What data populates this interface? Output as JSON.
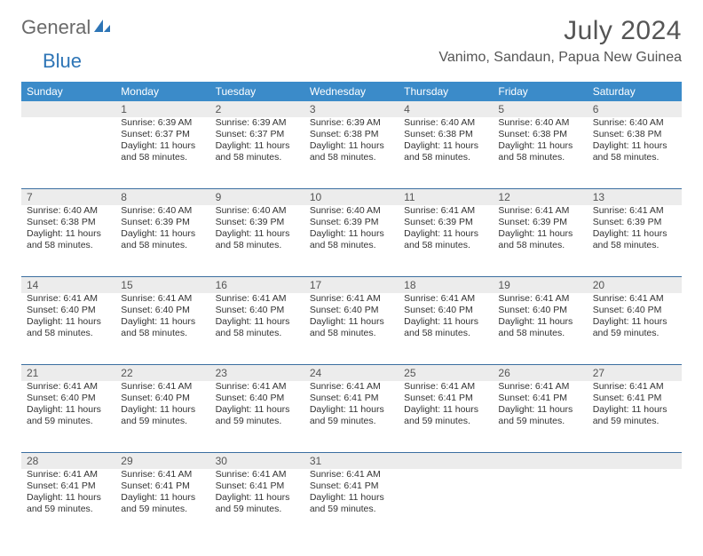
{
  "brand": {
    "part1": "General",
    "part2": "Blue"
  },
  "title": "July 2024",
  "location": "Vanimo, Sandaun, Papua New Guinea",
  "colors": {
    "header_bg": "#3b8bc9",
    "week_divider": "#3b6ea0",
    "daynum_bg": "#ececec",
    "text": "#333333",
    "muted": "#555555",
    "brand_gray": "#6a6a6a",
    "brand_blue": "#2e75b6",
    "page_bg": "#ffffff"
  },
  "typography": {
    "title_fontsize": 30,
    "location_fontsize": 16,
    "dow_fontsize": 12,
    "daynum_fontsize": 12,
    "cell_fontsize": 10.5
  },
  "dow": [
    "Sunday",
    "Monday",
    "Tuesday",
    "Wednesday",
    "Thursday",
    "Friday",
    "Saturday"
  ],
  "weeks": [
    [
      null,
      {
        "n": "1",
        "sr": "Sunrise: 6:39 AM",
        "ss": "Sunset: 6:37 PM",
        "d1": "Daylight: 11 hours",
        "d2": "and 58 minutes."
      },
      {
        "n": "2",
        "sr": "Sunrise: 6:39 AM",
        "ss": "Sunset: 6:37 PM",
        "d1": "Daylight: 11 hours",
        "d2": "and 58 minutes."
      },
      {
        "n": "3",
        "sr": "Sunrise: 6:39 AM",
        "ss": "Sunset: 6:38 PM",
        "d1": "Daylight: 11 hours",
        "d2": "and 58 minutes."
      },
      {
        "n": "4",
        "sr": "Sunrise: 6:40 AM",
        "ss": "Sunset: 6:38 PM",
        "d1": "Daylight: 11 hours",
        "d2": "and 58 minutes."
      },
      {
        "n": "5",
        "sr": "Sunrise: 6:40 AM",
        "ss": "Sunset: 6:38 PM",
        "d1": "Daylight: 11 hours",
        "d2": "and 58 minutes."
      },
      {
        "n": "6",
        "sr": "Sunrise: 6:40 AM",
        "ss": "Sunset: 6:38 PM",
        "d1": "Daylight: 11 hours",
        "d2": "and 58 minutes."
      }
    ],
    [
      {
        "n": "7",
        "sr": "Sunrise: 6:40 AM",
        "ss": "Sunset: 6:38 PM",
        "d1": "Daylight: 11 hours",
        "d2": "and 58 minutes."
      },
      {
        "n": "8",
        "sr": "Sunrise: 6:40 AM",
        "ss": "Sunset: 6:39 PM",
        "d1": "Daylight: 11 hours",
        "d2": "and 58 minutes."
      },
      {
        "n": "9",
        "sr": "Sunrise: 6:40 AM",
        "ss": "Sunset: 6:39 PM",
        "d1": "Daylight: 11 hours",
        "d2": "and 58 minutes."
      },
      {
        "n": "10",
        "sr": "Sunrise: 6:40 AM",
        "ss": "Sunset: 6:39 PM",
        "d1": "Daylight: 11 hours",
        "d2": "and 58 minutes."
      },
      {
        "n": "11",
        "sr": "Sunrise: 6:41 AM",
        "ss": "Sunset: 6:39 PM",
        "d1": "Daylight: 11 hours",
        "d2": "and 58 minutes."
      },
      {
        "n": "12",
        "sr": "Sunrise: 6:41 AM",
        "ss": "Sunset: 6:39 PM",
        "d1": "Daylight: 11 hours",
        "d2": "and 58 minutes."
      },
      {
        "n": "13",
        "sr": "Sunrise: 6:41 AM",
        "ss": "Sunset: 6:39 PM",
        "d1": "Daylight: 11 hours",
        "d2": "and 58 minutes."
      }
    ],
    [
      {
        "n": "14",
        "sr": "Sunrise: 6:41 AM",
        "ss": "Sunset: 6:40 PM",
        "d1": "Daylight: 11 hours",
        "d2": "and 58 minutes."
      },
      {
        "n": "15",
        "sr": "Sunrise: 6:41 AM",
        "ss": "Sunset: 6:40 PM",
        "d1": "Daylight: 11 hours",
        "d2": "and 58 minutes."
      },
      {
        "n": "16",
        "sr": "Sunrise: 6:41 AM",
        "ss": "Sunset: 6:40 PM",
        "d1": "Daylight: 11 hours",
        "d2": "and 58 minutes."
      },
      {
        "n": "17",
        "sr": "Sunrise: 6:41 AM",
        "ss": "Sunset: 6:40 PM",
        "d1": "Daylight: 11 hours",
        "d2": "and 58 minutes."
      },
      {
        "n": "18",
        "sr": "Sunrise: 6:41 AM",
        "ss": "Sunset: 6:40 PM",
        "d1": "Daylight: 11 hours",
        "d2": "and 58 minutes."
      },
      {
        "n": "19",
        "sr": "Sunrise: 6:41 AM",
        "ss": "Sunset: 6:40 PM",
        "d1": "Daylight: 11 hours",
        "d2": "and 58 minutes."
      },
      {
        "n": "20",
        "sr": "Sunrise: 6:41 AM",
        "ss": "Sunset: 6:40 PM",
        "d1": "Daylight: 11 hours",
        "d2": "and 59 minutes."
      }
    ],
    [
      {
        "n": "21",
        "sr": "Sunrise: 6:41 AM",
        "ss": "Sunset: 6:40 PM",
        "d1": "Daylight: 11 hours",
        "d2": "and 59 minutes."
      },
      {
        "n": "22",
        "sr": "Sunrise: 6:41 AM",
        "ss": "Sunset: 6:40 PM",
        "d1": "Daylight: 11 hours",
        "d2": "and 59 minutes."
      },
      {
        "n": "23",
        "sr": "Sunrise: 6:41 AM",
        "ss": "Sunset: 6:40 PM",
        "d1": "Daylight: 11 hours",
        "d2": "and 59 minutes."
      },
      {
        "n": "24",
        "sr": "Sunrise: 6:41 AM",
        "ss": "Sunset: 6:41 PM",
        "d1": "Daylight: 11 hours",
        "d2": "and 59 minutes."
      },
      {
        "n": "25",
        "sr": "Sunrise: 6:41 AM",
        "ss": "Sunset: 6:41 PM",
        "d1": "Daylight: 11 hours",
        "d2": "and 59 minutes."
      },
      {
        "n": "26",
        "sr": "Sunrise: 6:41 AM",
        "ss": "Sunset: 6:41 PM",
        "d1": "Daylight: 11 hours",
        "d2": "and 59 minutes."
      },
      {
        "n": "27",
        "sr": "Sunrise: 6:41 AM",
        "ss": "Sunset: 6:41 PM",
        "d1": "Daylight: 11 hours",
        "d2": "and 59 minutes."
      }
    ],
    [
      {
        "n": "28",
        "sr": "Sunrise: 6:41 AM",
        "ss": "Sunset: 6:41 PM",
        "d1": "Daylight: 11 hours",
        "d2": "and 59 minutes."
      },
      {
        "n": "29",
        "sr": "Sunrise: 6:41 AM",
        "ss": "Sunset: 6:41 PM",
        "d1": "Daylight: 11 hours",
        "d2": "and 59 minutes."
      },
      {
        "n": "30",
        "sr": "Sunrise: 6:41 AM",
        "ss": "Sunset: 6:41 PM",
        "d1": "Daylight: 11 hours",
        "d2": "and 59 minutes."
      },
      {
        "n": "31",
        "sr": "Sunrise: 6:41 AM",
        "ss": "Sunset: 6:41 PM",
        "d1": "Daylight: 11 hours",
        "d2": "and 59 minutes."
      },
      null,
      null,
      null
    ]
  ]
}
